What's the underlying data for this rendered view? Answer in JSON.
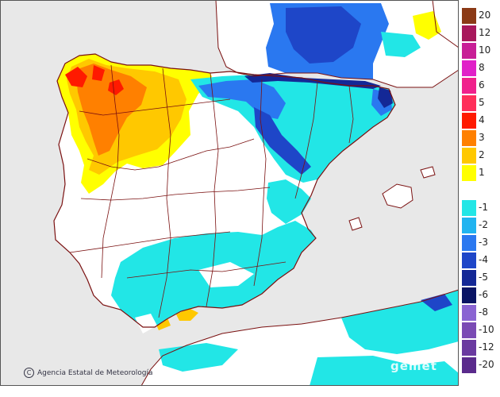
{
  "map": {
    "colors": {
      "sea": "#e8e8e8",
      "land": "#ffffff",
      "france": "#ffffff",
      "africa": "#ffffff",
      "border": "#7a1010",
      "coast": "#7a1010"
    }
  },
  "legend": {
    "items": [
      {
        "label": "20",
        "color": "#8b3a16"
      },
      {
        "label": "12",
        "color": "#a8185c"
      },
      {
        "label": "10",
        "color": "#c81e96"
      },
      {
        "label": "8",
        "color": "#e020c8"
      },
      {
        "label": "6",
        "color": "#f0208c"
      },
      {
        "label": "5",
        "color": "#ff2e5a"
      },
      {
        "label": "4",
        "color": "#ff1a00"
      },
      {
        "label": "3",
        "color": "#ff8000"
      },
      {
        "label": "2",
        "color": "#ffc800"
      },
      {
        "label": "1",
        "color": "#ffff00"
      },
      {
        "label": "",
        "color": "#ffffff"
      },
      {
        "label": "-1",
        "color": "#22e6e6"
      },
      {
        "label": "-2",
        "color": "#20b4f0"
      },
      {
        "label": "-3",
        "color": "#2a78f0"
      },
      {
        "label": "-4",
        "color": "#1e46c8"
      },
      {
        "label": "-5",
        "color": "#142896"
      },
      {
        "label": "-6",
        "color": "#0a1464"
      },
      {
        "label": "-8",
        "color": "#8a64d2"
      },
      {
        "label": "-10",
        "color": "#7a4ab4"
      },
      {
        "label": "-12",
        "color": "#6a3aa0"
      },
      {
        "label": "-20",
        "color": "#5a2a8c"
      }
    ]
  },
  "credit": {
    "icon": "copyright-icon",
    "icon_glyph": "C",
    "text": "Agencia Estatal de Meteorología"
  },
  "watermark": {
    "text": "gemet"
  }
}
